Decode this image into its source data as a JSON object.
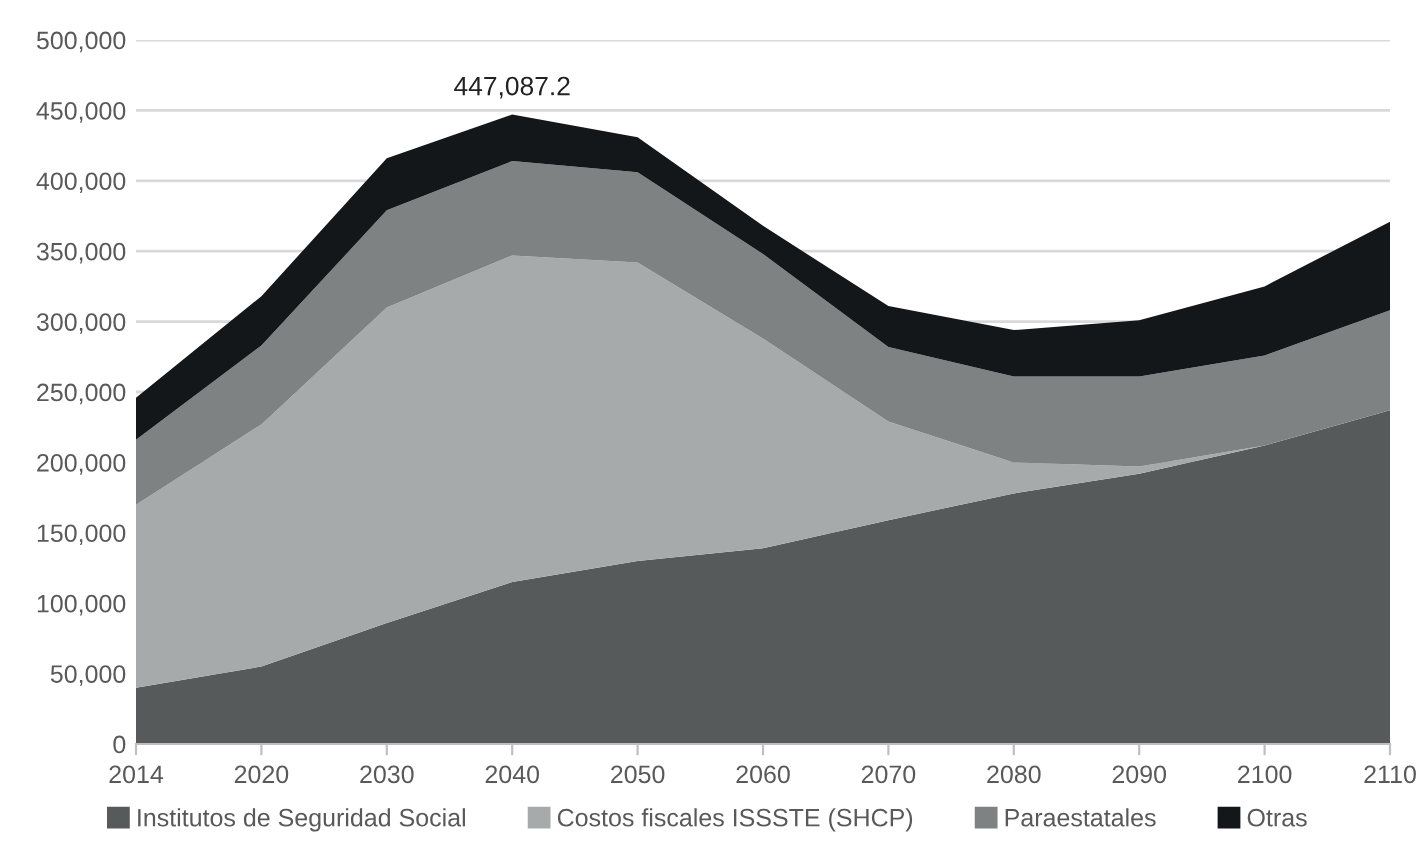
{
  "chart_data": {
    "type": "area",
    "stacked": true,
    "categories": [
      "2014",
      "2020",
      "2030",
      "2040",
      "2050",
      "2060",
      "2070",
      "2080",
      "2090",
      "2100",
      "2110"
    ],
    "series": [
      {
        "name": "Institutos de Seguridad Social",
        "color": "#575a5b",
        "values": [
          40000,
          55000,
          86000,
          115000,
          130000,
          139000,
          159000,
          178000,
          192000,
          212000,
          237000
        ]
      },
      {
        "name": "Costos fiscales ISSSTE (SHCP)",
        "color": "#a7aaaa",
        "values": [
          130000,
          172000,
          224000,
          232000,
          212000,
          149000,
          70000,
          22000,
          5000,
          0,
          0
        ]
      },
      {
        "name": "Paraestatales",
        "color": "#7f8282",
        "values": [
          46000,
          56000,
          69000,
          67000,
          64000,
          60000,
          53000,
          61000,
          64000,
          64000,
          71000
        ]
      },
      {
        "name": "Otras",
        "color": "#14171a",
        "values": [
          30000,
          35000,
          37000,
          33087.2,
          25000,
          20000,
          29000,
          33000,
          40000,
          49000,
          63000
        ]
      }
    ],
    "totals": [
      null,
      null,
      null,
      "447,087.2",
      null,
      null,
      null,
      null,
      null,
      null,
      null
    ],
    "ylim": [
      0,
      500000
    ],
    "yticks": [
      {
        "value": 0,
        "label": "0"
      },
      {
        "value": 50000,
        "label": "50,000"
      },
      {
        "value": 100000,
        "label": "100,000"
      },
      {
        "value": 150000,
        "label": "150,000"
      },
      {
        "value": 200000,
        "label": "200,000"
      },
      {
        "value": 250000,
        "label": "250,000"
      },
      {
        "value": 300000,
        "label": "300,000"
      },
      {
        "value": 350000,
        "label": "350,000"
      },
      {
        "value": 400000,
        "label": "400,000"
      },
      {
        "value": 450000,
        "label": "450,000"
      },
      {
        "value": 500000,
        "label": "500,000"
      }
    ],
    "grid": "y",
    "legend": "bottom"
  }
}
